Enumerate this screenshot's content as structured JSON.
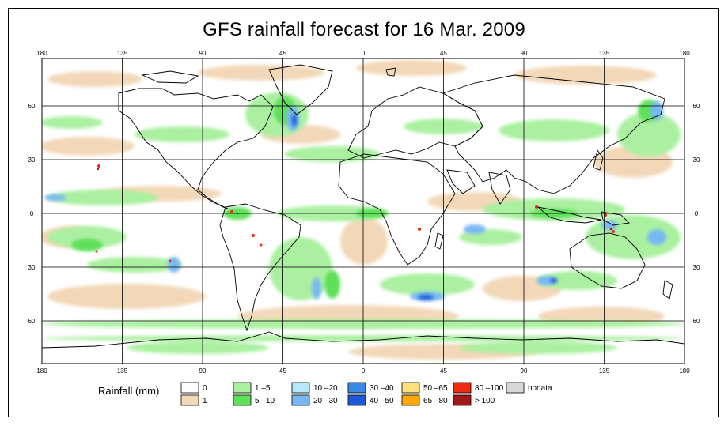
{
  "title": "GFS rainfall forecast for 16 Mar. 2009",
  "lon_ticks_top": [
    "180",
    "135",
    "90",
    "45",
    "0",
    "45",
    "90",
    "135",
    "180"
  ],
  "lon_ticks_bottom": [
    "180",
    "135",
    "90",
    "45",
    "0",
    "45",
    "90",
    "135",
    "180"
  ],
  "lat_ticks_left": [
    "60",
    "30",
    "0",
    "30",
    "60"
  ],
  "lat_ticks_right": [
    "60",
    "30",
    "0",
    "30",
    "60"
  ],
  "legend": {
    "title": "Rainfall (mm)",
    "classes": [
      {
        "label": "0",
        "color": "#ffffff"
      },
      {
        "label": "1",
        "color": "#f2d8b8"
      },
      {
        "label": "1 –5",
        "color": "#aaf0a0"
      },
      {
        "label": "5 –10",
        "color": "#5ee05a"
      },
      {
        "label": "10 –20",
        "color": "#b6e8f7"
      },
      {
        "label": "20 –30",
        "color": "#78b8f2"
      },
      {
        "label": "30 –40",
        "color": "#3a8ae6"
      },
      {
        "label": "40 –50",
        "color": "#1a5ad8"
      },
      {
        "label": "50 –65",
        "color": "#ffe07a"
      },
      {
        "label": "65 –80",
        "color": "#ffa800"
      },
      {
        "label": "80 –100",
        "color": "#ee2a10"
      },
      {
        "label": "> 100",
        "color": "#a01818"
      },
      {
        "label": "nodata",
        "color": "#d8d8d8"
      }
    ]
  },
  "colors": {
    "land_border": "#000000",
    "grid": "#000000"
  }
}
